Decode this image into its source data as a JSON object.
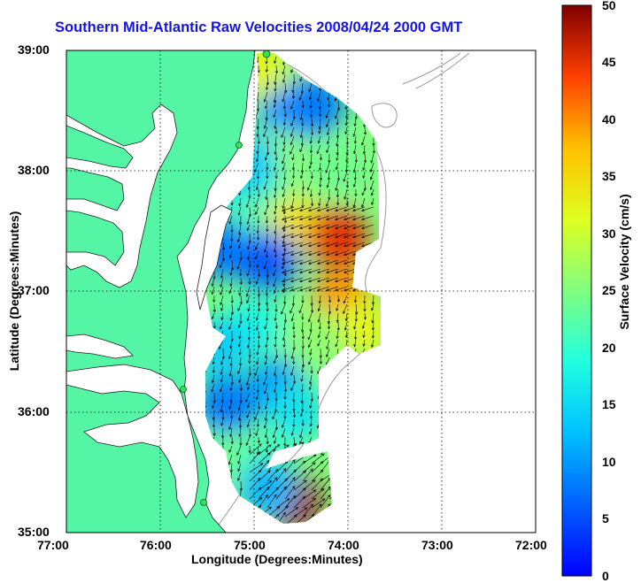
{
  "title": "Southern Mid-Atlantic Raw Velocities 2008/04/24 2000 GMT",
  "x_axis": {
    "label": "Longitude (Degrees:Minutes)",
    "ticks": [
      "77:00",
      "76:00",
      "75:00",
      "74:00",
      "73:00",
      "72:00"
    ]
  },
  "y_axis": {
    "label": "Latitude (Degrees:Minutes)",
    "ticks": [
      "39:00",
      "38:00",
      "37:00",
      "36:00",
      "35:00"
    ]
  },
  "colorbar": {
    "label": "Surface Velocity (cm/s)",
    "ticks": [
      "50",
      "45",
      "40",
      "35",
      "30",
      "25",
      "20",
      "15",
      "10",
      "5",
      "0"
    ],
    "min": 0,
    "max": 50,
    "colormap": "jet"
  },
  "colors": {
    "land": "#55f5a6",
    "title": "#1414e6",
    "grid": "#000000",
    "bathymetry_contours": "#9a9a9a",
    "station_markers": "#2ee65a"
  },
  "chart_data": {
    "type": "heatmap",
    "title": "Southern Mid-Atlantic Raw Velocities 2008/04/24 2000 GMT",
    "xlabel": "Longitude (Degrees:Minutes)",
    "ylabel": "Latitude (Degrees:Minutes)",
    "colorbar_label": "Surface Velocity (cm/s)",
    "xlim": [
      -77.0,
      -72.0
    ],
    "ylim": [
      35.0,
      39.0
    ],
    "clim": [
      0,
      50
    ],
    "grid": true,
    "overlay": "velocity vectors (quiver)",
    "regions": [
      {
        "lon": -74.95,
        "lat": 38.85,
        "speed": 32
      },
      {
        "lon": -74.65,
        "lat": 38.45,
        "speed": 10
      },
      {
        "lon": -74.35,
        "lat": 38.55,
        "speed": 8
      },
      {
        "lon": -74.75,
        "lat": 38.1,
        "speed": 26
      },
      {
        "lon": -74.15,
        "lat": 38.0,
        "speed": 24
      },
      {
        "lon": -75.2,
        "lat": 37.9,
        "speed": 16
      },
      {
        "lon": -74.9,
        "lat": 37.7,
        "speed": 22
      },
      {
        "lon": -74.55,
        "lat": 37.55,
        "speed": 34
      },
      {
        "lon": -74.1,
        "lat": 37.45,
        "speed": 45
      },
      {
        "lon": -75.35,
        "lat": 37.35,
        "speed": 8
      },
      {
        "lon": -74.85,
        "lat": 37.25,
        "speed": 6
      },
      {
        "lon": -74.05,
        "lat": 36.95,
        "speed": 40
      },
      {
        "lon": -73.85,
        "lat": 36.7,
        "speed": 32
      },
      {
        "lon": -74.35,
        "lat": 36.6,
        "speed": 26
      },
      {
        "lon": -75.0,
        "lat": 36.7,
        "speed": 18
      },
      {
        "lon": -75.35,
        "lat": 36.55,
        "speed": 14
      },
      {
        "lon": -74.75,
        "lat": 36.2,
        "speed": 10
      },
      {
        "lon": -75.3,
        "lat": 36.05,
        "speed": 8
      },
      {
        "lon": -74.55,
        "lat": 36.0,
        "speed": 16
      },
      {
        "lon": -75.4,
        "lat": 35.6,
        "speed": 24
      },
      {
        "lon": -74.85,
        "lat": 35.6,
        "speed": 22
      },
      {
        "lon": -74.6,
        "lat": 35.25,
        "speed": 48
      },
      {
        "lon": -74.85,
        "lat": 35.35,
        "speed": 12
      },
      {
        "lon": -75.05,
        "lat": 38.05,
        "speed": 14
      }
    ]
  }
}
